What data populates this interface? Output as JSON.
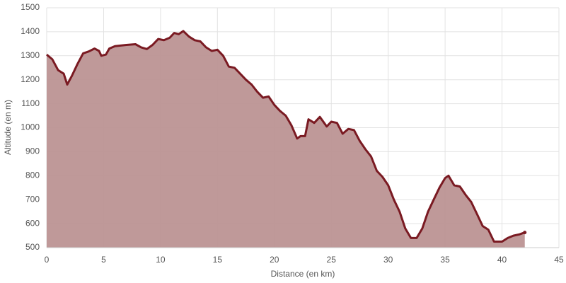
{
  "chart_data": {
    "type": "area",
    "xlabel": "Distance (en km)",
    "ylabel": "Altitude (en m)",
    "x": [
      0,
      0.5,
      1,
      1.5,
      1.8,
      2.2,
      2.7,
      3.2,
      3.7,
      4.2,
      4.6,
      4.8,
      5.2,
      5.5,
      6,
      7,
      7.8,
      8.3,
      8.8,
      9.3,
      9.8,
      10.3,
      10.8,
      11.2,
      11.6,
      12,
      12.5,
      13,
      13.5,
      14,
      14.5,
      15,
      15.5,
      16,
      16.5,
      17,
      17.5,
      18,
      18.5,
      19,
      19.5,
      20,
      20.5,
      21,
      21.5,
      22,
      22.3,
      22.7,
      23,
      23.5,
      24,
      24.6,
      25,
      25.5,
      26,
      26.5,
      27,
      27.5,
      28,
      28.5,
      29,
      29.5,
      30,
      30.5,
      31,
      31.5,
      32,
      32.5,
      33,
      33.5,
      34,
      34.5,
      35,
      35.3,
      35.8,
      36.3,
      36.8,
      37.3,
      37.8,
      38.3,
      38.8,
      39.3,
      40,
      40.5,
      41,
      41.5,
      42
    ],
    "series": [
      {
        "name": "Altitude",
        "color": "#7a1a22",
        "fill": "#bc9494",
        "values": [
          1305,
          1285,
          1240,
          1225,
          1180,
          1215,
          1265,
          1310,
          1318,
          1330,
          1320,
          1300,
          1305,
          1330,
          1340,
          1345,
          1348,
          1335,
          1328,
          1345,
          1370,
          1365,
          1375,
          1395,
          1390,
          1403,
          1380,
          1365,
          1360,
          1335,
          1320,
          1325,
          1300,
          1255,
          1250,
          1225,
          1200,
          1180,
          1150,
          1125,
          1130,
          1095,
          1070,
          1050,
          1010,
          955,
          965,
          965,
          1035,
          1020,
          1045,
          1005,
          1025,
          1020,
          975,
          995,
          990,
          945,
          910,
          880,
          820,
          795,
          760,
          700,
          650,
          580,
          540,
          540,
          580,
          650,
          700,
          750,
          790,
          800,
          760,
          755,
          720,
          690,
          640,
          590,
          575,
          525,
          525,
          540,
          550,
          555,
          563
        ]
      }
    ],
    "xlim": [
      0,
      45
    ],
    "xticks": [
      0,
      5,
      10,
      15,
      20,
      25,
      30,
      35,
      40,
      45
    ],
    "ylim": [
      500,
      1500
    ],
    "yticks": [
      500,
      600,
      700,
      800,
      900,
      1000,
      1100,
      1200,
      1300,
      1400,
      1500
    ],
    "grid": true
  }
}
